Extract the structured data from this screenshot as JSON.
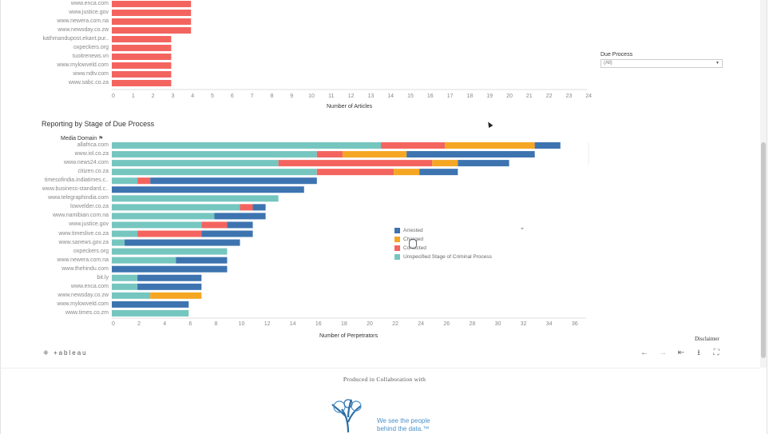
{
  "chart_data": [
    {
      "type": "bar",
      "orientation": "horizontal",
      "title": "",
      "xlabel": "Number of Articles",
      "categories": [
        "www.enca.com",
        "www.justice.gov",
        "www.newera.com.na",
        "www.newsday.co.zw",
        "kathmandupost.ekant.pur..",
        "oxpeckers.org",
        "tuoitrenews.vn",
        "www.mylowveld.com",
        "www.ndtv.com",
        "www.sabc.co.za"
      ],
      "values": [
        4,
        4,
        4,
        4,
        3,
        3,
        3,
        3,
        3,
        3
      ],
      "color": "#f4645f",
      "xticks": [
        0,
        1,
        2,
        3,
        4,
        5,
        6,
        7,
        8,
        9,
        10,
        11,
        12,
        13,
        14,
        15,
        16,
        17,
        18,
        19,
        20,
        21,
        22,
        23,
        24
      ],
      "xlim": [
        0,
        24
      ]
    },
    {
      "type": "bar",
      "orientation": "horizontal",
      "stacked": true,
      "title": "Reporting by Stage of Due Process",
      "xlabel": "Number of Perpetrators",
      "dimension_header": "Media Domain",
      "categories": [
        "allafrica.com",
        "www.iol.co.za",
        "www.news24.com",
        "citizen.co.za",
        "timesofindia.indiatimes.c..",
        "www.business-standard.c..",
        "www.telegraphindia.com",
        "lowvelder.co.za",
        "www.namibian.com.na",
        "www.justice.gov",
        "www.timeslive.co.za",
        "www.sanews.gov.za",
        "oxpeckers.org",
        "www.newera.com.na",
        "www.thehindu.com",
        "bit.ly",
        "www.enca.com",
        "www.newsday.co.zw",
        "www.mylowveld.com",
        "www.times.co.zm"
      ],
      "series": [
        {
          "name": "Unspecified Stage of Criminal Process",
          "color": "#76c6c0",
          "values": [
            21,
            16,
            13,
            16,
            2,
            0,
            13,
            10,
            8,
            7,
            2,
            1,
            9,
            5,
            0,
            2,
            2,
            3,
            0,
            6
          ]
        },
        {
          "name": "Convicted",
          "color": "#f4645f",
          "values": [
            5,
            2,
            12,
            6,
            1,
            0,
            0,
            1,
            0,
            2,
            5,
            0,
            0,
            0,
            0,
            0,
            0,
            0,
            0,
            0
          ]
        },
        {
          "name": "Charged",
          "color": "#f5a623",
          "values": [
            7,
            5,
            2,
            2,
            0,
            0,
            0,
            0,
            0,
            0,
            0,
            0,
            0,
            0,
            0,
            0,
            0,
            4,
            0,
            0
          ]
        },
        {
          "name": "Arrested",
          "color": "#3d74b0",
          "values": [
            2,
            10,
            4,
            3,
            13,
            15,
            0,
            1,
            4,
            2,
            4,
            9,
            0,
            4,
            9,
            5,
            5,
            0,
            6,
            0
          ]
        }
      ],
      "legend_order": [
        "Arrested",
        "Charged",
        "Convicted",
        "Unspecified Stage of Criminal Process"
      ],
      "legend_placement": "center-right",
      "xticks": [
        0,
        2,
        4,
        6,
        8,
        10,
        12,
        14,
        16,
        18,
        20,
        22,
        24,
        26,
        28,
        30,
        32,
        34,
        36
      ],
      "xlim": [
        0,
        37
      ]
    }
  ],
  "filter": {
    "label": "Due Process",
    "value": "(All)"
  },
  "footer": {
    "tableau_brand": "+ableau",
    "disclaimer": "Disclaimer",
    "collab_text": "Produced in Collaboration with",
    "tagline_line1": "We see the people",
    "tagline_line2": "behind the data.™"
  },
  "toolbar": {
    "undo": "←",
    "redo": "→",
    "revert": "⇤",
    "download": "⭳",
    "fullscreen": "⛶"
  }
}
